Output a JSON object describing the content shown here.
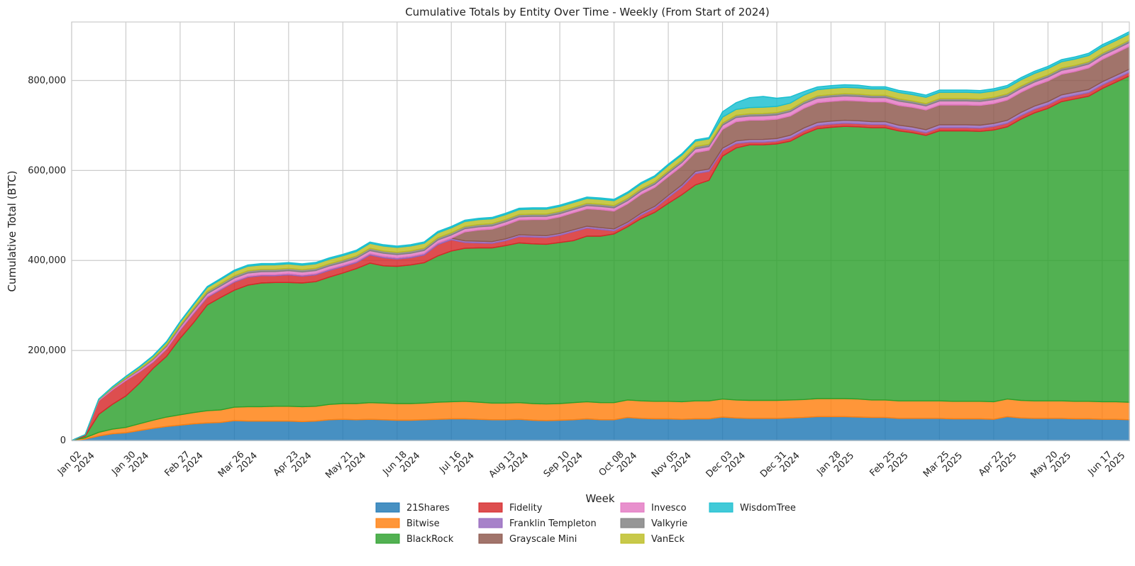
{
  "chart_data": {
    "type": "area",
    "stacked": true,
    "title": "Cumulative Totals by Entity Over Time - Weekly (From Start of 2024)",
    "xlabel": "Week",
    "ylabel": "Cumulative Total (BTC)",
    "ylim": [
      0,
      930000
    ],
    "yticks": [
      0,
      200000,
      400000,
      600000,
      800000
    ],
    "ytick_labels": [
      "0",
      "200,000",
      "400,000",
      "600,000",
      "800,000"
    ],
    "xlim_weeks": [
      0,
      78
    ],
    "xticks": [
      {
        "week": 0,
        "line1": "Jan 02",
        "line2": "2024"
      },
      {
        "week": 4,
        "line1": "Jan 30",
        "line2": "2024"
      },
      {
        "week": 8,
        "line1": "Feb 27",
        "line2": "2024"
      },
      {
        "week": 12,
        "line1": "Mar 26",
        "line2": "2024"
      },
      {
        "week": 16,
        "line1": "Apr 23",
        "line2": "2024"
      },
      {
        "week": 20,
        "line1": "May 21",
        "line2": "2024"
      },
      {
        "week": 24,
        "line1": "Jun 18",
        "line2": "2024"
      },
      {
        "week": 28,
        "line1": "Jul 16",
        "line2": "2024"
      },
      {
        "week": 32,
        "line1": "Aug 13",
        "line2": "2024"
      },
      {
        "week": 36,
        "line1": "Sep 10",
        "line2": "2024"
      },
      {
        "week": 40,
        "line1": "Oct 08",
        "line2": "2024"
      },
      {
        "week": 44,
        "line1": "Nov 05",
        "line2": "2024"
      },
      {
        "week": 48,
        "line1": "Dec 03",
        "line2": "2024"
      },
      {
        "week": 52,
        "line1": "Dec 31",
        "line2": "2024"
      },
      {
        "week": 56,
        "line1": "Jan 28",
        "line2": "2025"
      },
      {
        "week": 60,
        "line1": "Feb 25",
        "line2": "2025"
      },
      {
        "week": 64,
        "line1": "Mar 25",
        "line2": "2025"
      },
      {
        "week": 68,
        "line1": "Apr 22",
        "line2": "2025"
      },
      {
        "week": 72,
        "line1": "May 20",
        "line2": "2025"
      },
      {
        "week": 76,
        "line1": "Jun 17",
        "line2": "2025"
      }
    ],
    "grid": true,
    "legend_position": "bottom-center",
    "series": [
      {
        "name": "21Shares",
        "color": "#1f77b4",
        "values": [
          0,
          3000,
          10000,
          15000,
          17000,
          22000,
          27000,
          31000,
          34000,
          37000,
          39000,
          40000,
          44000,
          43000,
          43000,
          43000,
          43000,
          42000,
          43000,
          46000,
          47000,
          46000,
          47000,
          46000,
          45000,
          45000,
          46000,
          47000,
          48000,
          48000,
          47000,
          46000,
          46000,
          47000,
          45000,
          44000,
          45000,
          46000,
          48000,
          46000,
          46000,
          51000,
          49000,
          48000,
          48000,
          47000,
          48000,
          48000,
          52000,
          50000,
          49000,
          49000,
          49000,
          50000,
          51000,
          53000,
          53000,
          53000,
          52000,
          51000,
          51000,
          49000,
          49000,
          49000,
          49000,
          48000,
          48000,
          48000,
          47000,
          53000,
          50000,
          49000,
          49000,
          49000,
          48000,
          48000,
          47000,
          47000,
          46000
        ]
      },
      {
        "name": "Bitwise",
        "color": "#ff7f0e",
        "values": [
          0,
          3000,
          8000,
          10000,
          12000,
          15000,
          18000,
          21000,
          23000,
          25000,
          27000,
          28000,
          30000,
          32000,
          32000,
          33000,
          33000,
          33000,
          33000,
          34000,
          35000,
          36000,
          37000,
          37000,
          37000,
          37000,
          37000,
          38000,
          38000,
          39000,
          38000,
          37000,
          37000,
          37000,
          37000,
          37000,
          37000,
          38000,
          38000,
          38000,
          38000,
          39000,
          39000,
          39000,
          39000,
          39000,
          40000,
          40000,
          40000,
          40000,
          40000,
          40000,
          40000,
          40000,
          40000,
          40000,
          40000,
          40000,
          40000,
          39000,
          39000,
          39000,
          39000,
          39000,
          39000,
          39000,
          39000,
          39000,
          39000,
          39000,
          39000,
          39000,
          39000,
          39000,
          39000,
          39000,
          39000,
          39000,
          39000
        ]
      },
      {
        "name": "BlackRock",
        "color": "#2ca02c",
        "values": [
          0,
          4000,
          40000,
          55000,
          70000,
          90000,
          115000,
          135000,
          170000,
          200000,
          235000,
          250000,
          260000,
          270000,
          275000,
          275000,
          275000,
          275000,
          277000,
          283000,
          290000,
          300000,
          310000,
          305000,
          305000,
          308000,
          312000,
          325000,
          335000,
          340000,
          343000,
          345000,
          350000,
          355000,
          355000,
          355000,
          358000,
          360000,
          368000,
          370000,
          375000,
          385000,
          405000,
          420000,
          440000,
          460000,
          480000,
          490000,
          540000,
          560000,
          568000,
          568000,
          570000,
          575000,
          590000,
          600000,
          603000,
          605000,
          605000,
          605000,
          605000,
          600000,
          596000,
          590000,
          600000,
          601000,
          601000,
          600000,
          604000,
          605000,
          625000,
          640000,
          650000,
          665000,
          672000,
          678000,
          696000,
          710000,
          725000
        ]
      },
      {
        "name": "Fidelity",
        "color": "#d62728",
        "values": [
          0,
          3000,
          30000,
          32000,
          34000,
          25000,
          14000,
          16000,
          18000,
          20000,
          17000,
          17000,
          18000,
          18000,
          16000,
          15000,
          17000,
          15000,
          15000,
          15000,
          14000,
          13000,
          18000,
          18000,
          16000,
          16000,
          17000,
          25000,
          25000,
          13000,
          11000,
          10000,
          11000,
          14000,
          15000,
          15000,
          16000,
          20000,
          18000,
          15000,
          7000,
          6000,
          8000,
          9000,
          13000,
          17000,
          25000,
          20000,
          12000,
          10000,
          6000,
          6000,
          6000,
          7000,
          7000,
          7000,
          7000,
          7000,
          7000,
          7000,
          7000,
          6000,
          6000,
          6000,
          7000,
          7000,
          7000,
          7000,
          8000,
          8000,
          8000,
          8000,
          8000,
          8000,
          8000,
          8000,
          8000,
          8000,
          8000
        ]
      },
      {
        "name": "Franklin Templeton",
        "color": "#9467bd",
        "values": [
          0,
          0,
          200,
          400,
          600,
          800,
          1000,
          1200,
          1400,
          1600,
          1800,
          2000,
          2000,
          2100,
          2200,
          2300,
          2400,
          2500,
          2600,
          2700,
          2800,
          2900,
          3000,
          3000,
          3100,
          3200,
          3300,
          3400,
          3500,
          3600,
          3700,
          3800,
          3900,
          4000,
          4000,
          4000,
          4000,
          4000,
          4000,
          4000,
          4000,
          4000,
          4200,
          4400,
          4600,
          4800,
          5000,
          5200,
          5400,
          5600,
          5800,
          6000,
          6000,
          6200,
          6400,
          6600,
          6600,
          6600,
          6600,
          6600,
          6600,
          6600,
          6600,
          6600,
          6600,
          6600,
          6600,
          6600,
          6600,
          6600,
          6800,
          7000,
          7000,
          7000,
          7000,
          7000,
          7000,
          7000,
          7000
        ]
      },
      {
        "name": "Grayscale Mini",
        "color": "#8c564b",
        "values": [
          0,
          0,
          0,
          0,
          0,
          0,
          0,
          0,
          0,
          0,
          0,
          0,
          0,
          0,
          0,
          0,
          0,
          0,
          0,
          0,
          0,
          0,
          0,
          0,
          0,
          0,
          0,
          0,
          0,
          20000,
          25000,
          28000,
          31000,
          33000,
          35000,
          36000,
          37000,
          38000,
          39000,
          40000,
          40000,
          41000,
          42000,
          42000,
          42000,
          42000,
          42000,
          42000,
          42000,
          43000,
          43000,
          43000,
          43000,
          43000,
          44000,
          44000,
          44000,
          44000,
          44000,
          44000,
          44000,
          44000,
          44000,
          44000,
          44000,
          44000,
          44000,
          44000,
          44000,
          45000,
          45000,
          45000,
          46000,
          46000,
          46000,
          48000,
          50000,
          50000,
          51000
        ]
      },
      {
        "name": "Invesco",
        "color": "#e377c2",
        "values": [
          0,
          0,
          2000,
          3000,
          3500,
          4000,
          4500,
          5000,
          5500,
          6000,
          6500,
          6500,
          7000,
          7000,
          7000,
          7000,
          7000,
          7000,
          7000,
          7000,
          7000,
          7000,
          7000,
          7000,
          7000,
          7000,
          7000,
          7000,
          7000,
          7000,
          7000,
          7000,
          7000,
          7000,
          7000,
          7000,
          7000,
          7000,
          7000,
          7000,
          7000,
          7000,
          7000,
          7000,
          7500,
          7500,
          8000,
          8000,
          9000,
          9000,
          9000,
          9500,
          9500,
          9500,
          10000,
          10000,
          10000,
          10000,
          10000,
          9500,
          9500,
          9500,
          9000,
          9000,
          9000,
          9000,
          9000,
          9000,
          9000,
          8500,
          8500,
          8500,
          8500,
          8500,
          8500,
          8500,
          8500,
          8500,
          8500
        ]
      },
      {
        "name": "Valkyrie",
        "color": "#7f7f7f",
        "values": [
          0,
          0,
          500,
          1000,
          1500,
          2000,
          2500,
          3000,
          3500,
          4000,
          4500,
          5000,
          5000,
          5000,
          5000,
          5000,
          5000,
          5000,
          5000,
          5000,
          5000,
          5000,
          5000,
          5000,
          5000,
          5000,
          5000,
          5000,
          5000,
          5000,
          5000,
          5000,
          5000,
          5000,
          5000,
          5000,
          5000,
          5000,
          5000,
          5000,
          5000,
          5000,
          5000,
          5000,
          5000,
          5000,
          5000,
          5000,
          5000,
          5000,
          5000,
          5000,
          5000,
          5000,
          5000,
          5000,
          5000,
          5000,
          5000,
          5000,
          5000,
          5000,
          5000,
          5000,
          5000,
          5000,
          5000,
          5000,
          5000,
          5000,
          5000,
          5000,
          5000,
          5000,
          5000,
          5000,
          5000,
          5000,
          5000
        ]
      },
      {
        "name": "VanEck",
        "color": "#bcbd22",
        "values": [
          0,
          0,
          1000,
          2000,
          3000,
          4000,
          5000,
          6000,
          7000,
          8000,
          9000,
          9000,
          10000,
          10000,
          10000,
          10000,
          10000,
          10000,
          10000,
          10000,
          10000,
          10000,
          11000,
          11000,
          11000,
          11000,
          11000,
          11000,
          11000,
          11000,
          11000,
          11000,
          11000,
          11000,
          11000,
          11000,
          11000,
          11000,
          11000,
          11000,
          11000,
          11000,
          11000,
          11000,
          12000,
          12000,
          12000,
          12000,
          13000,
          13000,
          14000,
          14000,
          14000,
          14000,
          14000,
          14000,
          14000,
          14000,
          14000,
          14000,
          14000,
          14000,
          14000,
          14000,
          14000,
          14000,
          14000,
          14000,
          14000,
          14000,
          14000,
          14000,
          14000,
          14000,
          14000,
          14000,
          14000,
          14000,
          14000
        ]
      },
      {
        "name": "WisdomTree",
        "color": "#17becf",
        "values": [
          0,
          0,
          500,
          1000,
          1200,
          1400,
          1600,
          1800,
          2000,
          2200,
          2400,
          2600,
          2800,
          3000,
          3000,
          3000,
          3000,
          3000,
          3000,
          3000,
          3000,
          3000,
          3000,
          3000,
          3000,
          3000,
          3000,
          3000,
          3000,
          3000,
          3000,
          3000,
          3000,
          3000,
          3000,
          3000,
          3000,
          3000,
          3000,
          3000,
          3000,
          3000,
          3000,
          3000,
          3000,
          3000,
          3000,
          3000,
          12000,
          15000,
          22000,
          24000,
          18000,
          14000,
          8000,
          6000,
          6000,
          6000,
          6000,
          5000,
          5000,
          5000,
          5000,
          5000,
          5000,
          5000,
          5000,
          5000,
          5000,
          5000,
          5000,
          5000,
          5000,
          5000,
          5000,
          5000,
          5000,
          5000,
          5000
        ]
      }
    ]
  }
}
